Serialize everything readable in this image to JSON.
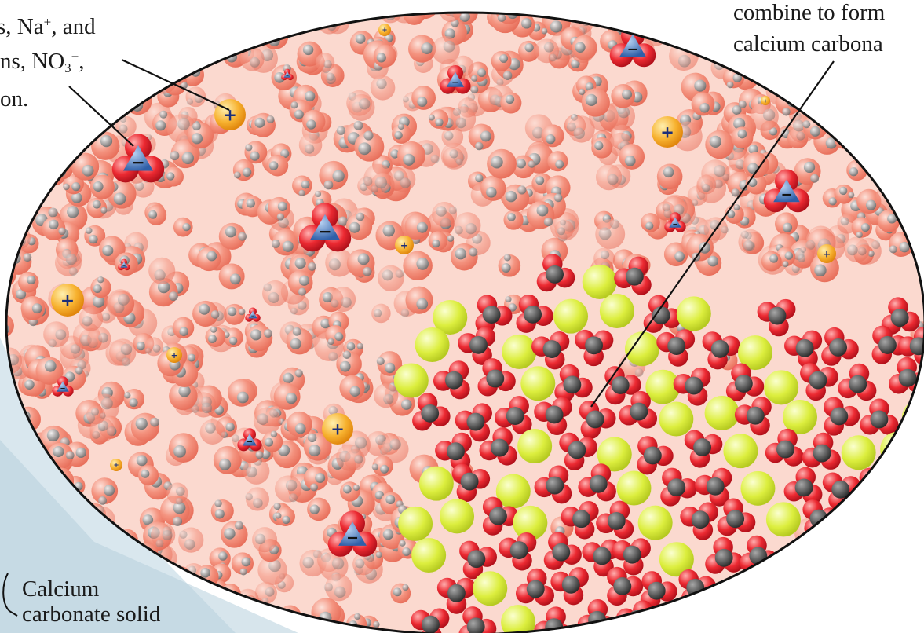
{
  "labels": {
    "ions_line1_a": "ons, Na",
    "ions_line1_sup": "+",
    "ions_line1_b": ", and",
    "ions_line2_a": "ns, NO",
    "ions_line2_sub": "3",
    "ions_line2_sup": "−",
    "ions_line2_b": ",",
    "ions_line3": "on.",
    "combine_line1": "combine to form",
    "combine_line2": "calcium carbona",
    "solid_line1": "Calcium",
    "solid_line2": "carbonate solid"
  },
  "ion_symbols": {
    "cation": "+",
    "anion": "−"
  },
  "colors": {
    "water_oxygen": "#f08a78",
    "water_hydrogen": "#8e8e8e",
    "sodium": "#f5a623",
    "nitrate_nitrogen": "#3b6fb6",
    "nitrate_oxygen": "#e0202a",
    "calcium": "#d8ec3a",
    "carbonate_carbon": "#3a3a3a",
    "carbonate_oxygen": "#e8232e",
    "leader_line": "#111111",
    "zoom_cone": "#c9dde8"
  }
}
